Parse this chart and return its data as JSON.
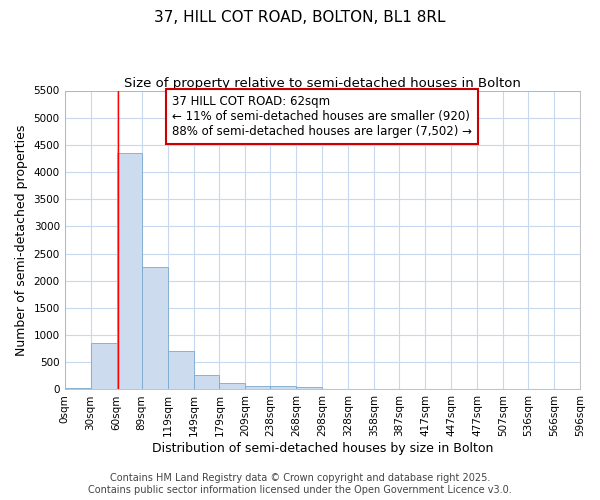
{
  "title": "37, HILL COT ROAD, BOLTON, BL1 8RL",
  "subtitle": "Size of property relative to semi-detached houses in Bolton",
  "xlabel": "Distribution of semi-detached houses by size in Bolton",
  "ylabel": "Number of semi-detached properties",
  "footnote1": "Contains HM Land Registry data © Crown copyright and database right 2025.",
  "footnote2": "Contains public sector information licensed under the Open Government Licence v3.0.",
  "annotation_title": "37 HILL COT ROAD: 62sqm",
  "annotation_line1": "← 11% of semi-detached houses are smaller (920)",
  "annotation_line2": "88% of semi-detached houses are larger (7,502) →",
  "bar_left_edges": [
    0,
    30,
    60,
    89,
    119,
    149,
    179,
    209,
    238,
    268,
    298,
    328,
    358,
    387,
    417,
    447,
    477,
    507,
    536,
    566
  ],
  "bar_widths": [
    30,
    30,
    29,
    30,
    30,
    30,
    30,
    29,
    30,
    30,
    30,
    30,
    29,
    30,
    30,
    30,
    30,
    29,
    30,
    30
  ],
  "bar_heights": [
    30,
    850,
    4350,
    2250,
    700,
    260,
    120,
    70,
    60,
    40,
    5,
    3,
    2,
    1,
    1,
    0,
    0,
    0,
    0,
    0
  ],
  "bar_color": "#ccdcee",
  "bar_edge_color": "#7aaace",
  "red_line_x": 62,
  "ylim": [
    0,
    5500
  ],
  "xlim": [
    0,
    596
  ],
  "yticks": [
    0,
    500,
    1000,
    1500,
    2000,
    2500,
    3000,
    3500,
    4000,
    4500,
    5000,
    5500
  ],
  "xtick_labels": [
    "0sqm",
    "30sqm",
    "60sqm",
    "89sqm",
    "119sqm",
    "149sqm",
    "179sqm",
    "209sqm",
    "238sqm",
    "268sqm",
    "298sqm",
    "328sqm",
    "358sqm",
    "387sqm",
    "417sqm",
    "447sqm",
    "477sqm",
    "507sqm",
    "536sqm",
    "566sqm",
    "596sqm"
  ],
  "xtick_positions": [
    0,
    30,
    60,
    89,
    119,
    149,
    179,
    209,
    238,
    268,
    298,
    328,
    358,
    387,
    417,
    447,
    477,
    507,
    536,
    566,
    596
  ],
  "bg_color": "#ffffff",
  "plot_bg_color": "#ffffff",
  "grid_color": "#c8d8ee",
  "annotation_box_color": "#ffffff",
  "annotation_box_edge": "#cc0000",
  "title_fontsize": 11,
  "subtitle_fontsize": 9.5,
  "axis_label_fontsize": 9,
  "tick_fontsize": 7.5,
  "annotation_fontsize": 8.5,
  "footnote_fontsize": 7
}
